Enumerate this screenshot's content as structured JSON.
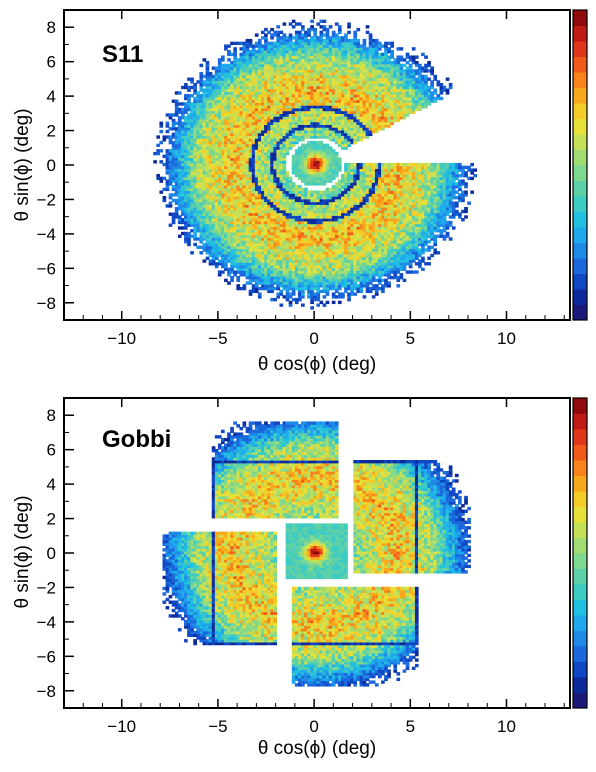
{
  "colors": {
    "palette": [
      "#1a1a7a",
      "#0d2a9a",
      "#1048c4",
      "#1a68dc",
      "#1e8ae6",
      "#1fa8ec",
      "#22c0e0",
      "#3ecbc4",
      "#5ed0a8",
      "#7ed890",
      "#a0dc72",
      "#c4e056",
      "#e6e03a",
      "#f4cc28",
      "#f8a81c",
      "#f6841a",
      "#f05a18",
      "#e0361a",
      "#c01c16",
      "#900c0c"
    ],
    "frame": "#000000"
  },
  "chart_data": [
    {
      "type": "heatmap",
      "panel_label": "S11",
      "xlabel": "θ cos(ϕ) (deg)",
      "ylabel": "θ sin(ϕ) (deg)",
      "xlim": [
        -13,
        13.3
      ],
      "ylim": [
        -9,
        9
      ],
      "x_ticks": [
        -10,
        -5,
        0,
        5,
        10
      ],
      "x_tick_labels": [
        "−10",
        "−5",
        "0",
        "5",
        "10"
      ],
      "y_ticks": [
        -8,
        -6,
        -4,
        -2,
        0,
        2,
        4,
        6,
        8
      ],
      "y_tick_labels": [
        "−8",
        "−6",
        "−4",
        "−2",
        "0",
        "2",
        "4",
        "6",
        "8"
      ],
      "detector": "annular",
      "geometry": {
        "inner_hole_radius": 1.3,
        "ring_gaps": [
          2.25,
          3.3
        ],
        "outer_radius": 7.8,
        "missing_wedge_deg": [
          0,
          30
        ],
        "central_spot_radius": 1.3
      },
      "colorbar": true
    },
    {
      "type": "heatmap",
      "panel_label": "Gobbi",
      "xlabel": "θ cos(ϕ) (deg)",
      "ylabel": "θ sin(ϕ) (deg)",
      "xlim": [
        -13,
        13.3
      ],
      "ylim": [
        -9,
        9
      ],
      "x_ticks": [
        -10,
        -5,
        0,
        5,
        10
      ],
      "x_tick_labels": [
        "−10",
        "−5",
        "0",
        "5",
        "10"
      ],
      "y_ticks": [
        -8,
        -6,
        -4,
        -2,
        0,
        2,
        4,
        6,
        8
      ],
      "y_tick_labels": [
        "−8",
        "−6",
        "−4",
        "−2",
        "0",
        "2",
        "4",
        "6",
        "8"
      ],
      "detector": "four-quadrant",
      "geometry": {
        "central_square": [
          -1.6,
          1.6,
          -1.6,
          1.6
        ],
        "quadrants": [
          {
            "x": [
              -5.4,
              1.2
            ],
            "y": [
              2.0,
              7.5
            ]
          },
          {
            "x": [
              2.0,
              8.0
            ],
            "y": [
              -1.2,
              5.4
            ]
          },
          {
            "x": [
              -8.0,
              -2.0
            ],
            "y": [
              -5.4,
              1.2
            ]
          },
          {
            "x": [
              -1.2,
              5.4
            ],
            "y": [
              -7.8,
              -2.0
            ]
          }
        ],
        "outer_radius": 8.0
      },
      "colorbar": true
    }
  ]
}
